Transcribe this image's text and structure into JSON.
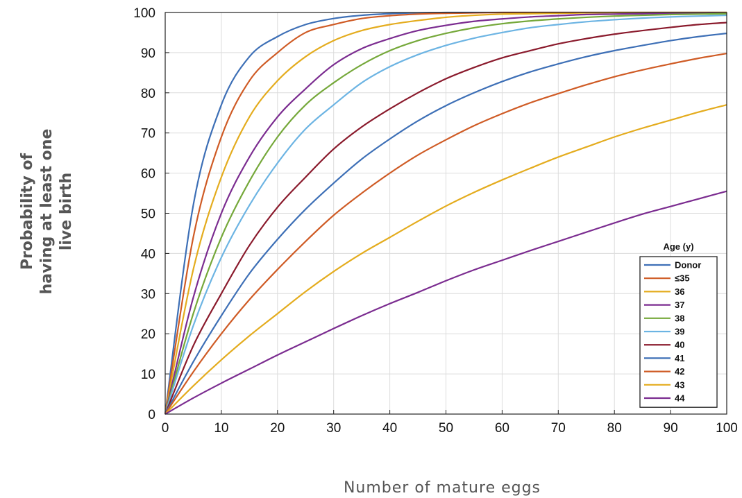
{
  "chart_data": {
    "type": "line",
    "title": "",
    "xlabel": "Number of mature eggs",
    "ylabel_lines": [
      "Probability of",
      "having at least one",
      "live birth"
    ],
    "xlim": [
      0,
      100
    ],
    "ylim": [
      0,
      100
    ],
    "x_ticks": [
      "0",
      "10",
      "20",
      "30",
      "40",
      "50",
      "60",
      "70",
      "80",
      "90",
      "100"
    ],
    "y_ticks": [
      "0",
      "10",
      "20",
      "30",
      "40",
      "50",
      "60",
      "70",
      "80",
      "90",
      "100"
    ],
    "grid": true,
    "legend_title": "Age (y)",
    "legend_position": "bottom-right",
    "x": [
      0,
      5,
      10,
      15,
      20,
      25,
      30,
      35,
      40,
      45,
      50,
      55,
      60,
      65,
      70,
      75,
      80,
      85,
      90,
      95,
      100
    ],
    "series": [
      {
        "name": "Donor",
        "color": "#3d6fb6",
        "values": [
          0,
          52,
          77,
          89,
          94,
          97,
          98.5,
          99.3,
          99.7,
          99.9,
          100,
          100,
          100,
          100,
          100,
          100,
          100,
          100,
          100,
          100,
          100
        ]
      },
      {
        "name": "≤35",
        "color": "#cf5b25",
        "values": [
          0,
          44,
          69,
          83,
          90,
          95,
          97,
          98.5,
          99.2,
          99.6,
          99.8,
          99.9,
          100,
          100,
          100,
          100,
          100,
          100,
          100,
          100,
          100
        ]
      },
      {
        "name": "36",
        "color": "#e4ac1e",
        "values": [
          0,
          36,
          59,
          74,
          83,
          89,
          93,
          95.5,
          97,
          98,
          98.8,
          99.3,
          99.6,
          99.7,
          99.8,
          99.9,
          100,
          100,
          100,
          100,
          100
        ]
      },
      {
        "name": "37",
        "color": "#7b2c90",
        "values": [
          0,
          29,
          50,
          64,
          74,
          81,
          87,
          91,
          93.5,
          95.5,
          96.8,
          97.8,
          98.4,
          98.9,
          99.2,
          99.5,
          99.6,
          99.7,
          99.8,
          99.9,
          99.9
        ]
      },
      {
        "name": "38",
        "color": "#75a83a",
        "values": [
          0,
          25,
          44,
          58,
          69,
          77,
          82.5,
          87,
          90.5,
          93,
          94.8,
          96.2,
          97.2,
          97.9,
          98.4,
          98.8,
          99.1,
          99.3,
          99.5,
          99.6,
          99.7
        ]
      },
      {
        "name": "39",
        "color": "#6cb4e3",
        "values": [
          0,
          22,
          39,
          52,
          62.5,
          71,
          77,
          82.5,
          86.5,
          89.5,
          91.8,
          93.6,
          95,
          96.2,
          97,
          97.7,
          98.2,
          98.6,
          98.9,
          99.1,
          99.3
        ]
      },
      {
        "name": "40",
        "color": "#8a1a2c",
        "values": [
          0,
          17,
          30,
          42,
          51.5,
          59,
          66,
          71.5,
          76,
          80,
          83.5,
          86.3,
          88.7,
          90.5,
          92.2,
          93.5,
          94.6,
          95.5,
          96.3,
          97,
          97.5
        ]
      },
      {
        "name": "41",
        "color": "#3d6fb6",
        "values": [
          0,
          13,
          24.5,
          35,
          43.5,
          51,
          57.5,
          63.5,
          68.5,
          73,
          76.8,
          80,
          82.8,
          85.2,
          87.2,
          89,
          90.5,
          91.8,
          93,
          94,
          94.8
        ]
      },
      {
        "name": "42",
        "color": "#cf5b25",
        "values": [
          0,
          10.5,
          20,
          28.5,
          36,
          43,
          49.5,
          55,
          60,
          64.5,
          68.3,
          71.8,
          74.8,
          77.5,
          79.8,
          82,
          84,
          85.7,
          87.2,
          88.6,
          89.8
        ]
      },
      {
        "name": "43",
        "color": "#e4ac1e",
        "values": [
          0,
          7,
          13.5,
          19.5,
          25,
          30.5,
          35.5,
          40,
          44,
          48,
          51.8,
          55.2,
          58.3,
          61.2,
          64,
          66.5,
          69,
          71.2,
          73.2,
          75.2,
          77
        ]
      },
      {
        "name": "44",
        "color": "#7b2c90",
        "values": [
          0,
          4,
          7.7,
          11.2,
          14.7,
          18,
          21.3,
          24.5,
          27.5,
          30.3,
          33.2,
          35.9,
          38.3,
          40.7,
          43,
          45.3,
          47.6,
          49.8,
          51.7,
          53.6,
          55.5
        ]
      }
    ]
  }
}
